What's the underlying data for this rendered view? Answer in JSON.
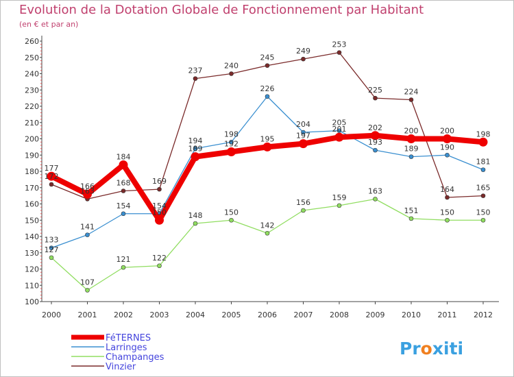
{
  "title": "Evolution de la Dotation Globale de Fonctionnement par Habitant",
  "subtitle": "(en € et par an)",
  "logo": "Proxiti",
  "chart_data": {
    "type": "line",
    "x": [
      "2000",
      "2001",
      "2002",
      "2003",
      "2004",
      "2005",
      "2006",
      "2007",
      "2008",
      "2009",
      "2010",
      "2011",
      "2012"
    ],
    "ylim": [
      100,
      260
    ],
    "yticks": [
      100,
      110,
      120,
      130,
      140,
      150,
      160,
      170,
      180,
      190,
      200,
      210,
      220,
      230,
      240,
      250,
      260
    ],
    "series": [
      {
        "name": "FéTERNES",
        "color": "#ee0000",
        "values": [
          177,
          166,
          184,
          150,
          189,
          192,
          195,
          197,
          201,
          202,
          200,
          200,
          198
        ]
      },
      {
        "name": "Larringes",
        "color": "#3a8fd0",
        "values": [
          133,
          141,
          154,
          154,
          194,
          198,
          226,
          204,
          205,
          193,
          189,
          190,
          181
        ]
      },
      {
        "name": "Champanges",
        "color": "#90dd60",
        "values": [
          127,
          107,
          121,
          122,
          148,
          150,
          142,
          156,
          159,
          163,
          151,
          150,
          150
        ]
      },
      {
        "name": "Vinzier",
        "color": "#7a2a2a",
        "values": [
          172,
          163,
          168,
          169,
          237,
          240,
          245,
          249,
          253,
          225,
          224,
          164,
          165
        ]
      }
    ],
    "legend_position": "bottom-left",
    "grid": false
  }
}
